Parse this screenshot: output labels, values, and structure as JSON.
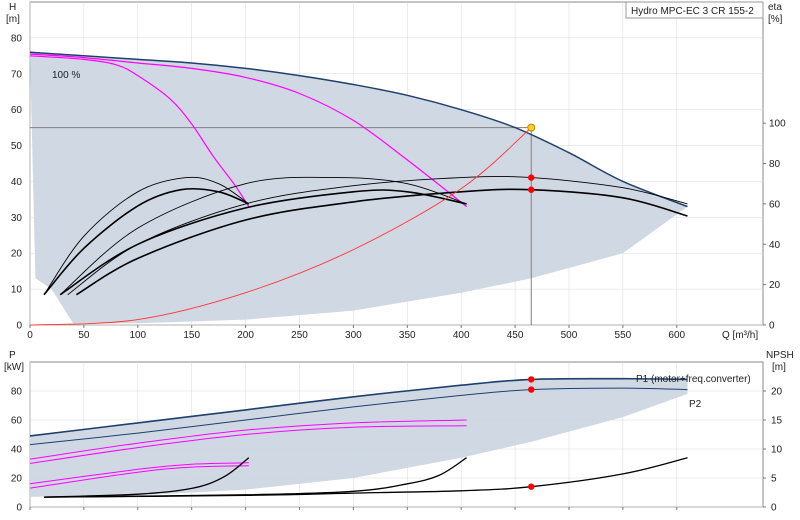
{
  "title": "Hydro MPC-EC 3 CR 155-2",
  "colors": {
    "region": "#ccd6e2",
    "envelope": "#1f3f6e",
    "partial": "#ff00ff",
    "efficiency": "#000000",
    "system": "#ff3333",
    "duty_point": "#ffd21f",
    "marker": "#ff0000",
    "guide": "#808080"
  },
  "chart_data": [
    {
      "type": "line",
      "x_label": "Q [m³/h]",
      "y_left_label": [
        "H",
        "[m]"
      ],
      "y_right_label": [
        "eta",
        "[%]"
      ],
      "x_ticks": [
        0,
        50,
        100,
        150,
        200,
        250,
        300,
        350,
        400,
        450,
        500,
        550,
        600
      ],
      "y_left_ticks": [
        0,
        10,
        20,
        30,
        40,
        50,
        60,
        70,
        80
      ],
      "y_right_ticks": [
        0,
        20,
        40,
        60,
        80,
        100
      ],
      "xlim": [
        0,
        680
      ],
      "ylim_left": [
        0,
        90
      ],
      "ylim_right": [
        0,
        160
      ],
      "annotation": "100 %",
      "duty_point": {
        "q": 465,
        "h": 55
      },
      "series": [
        {
          "role": "max_curve",
          "axis": "left",
          "x": [
            0,
            50,
            100,
            150,
            200,
            250,
            300,
            350,
            400,
            450,
            500,
            550,
            610
          ],
          "y": [
            76,
            75,
            74,
            73,
            71.5,
            69.5,
            67,
            64,
            60,
            55,
            48,
            40,
            33
          ]
        },
        {
          "role": "partial",
          "axis": "left",
          "x": [
            0,
            50,
            100,
            150,
            200,
            250,
            300,
            350,
            405
          ],
          "y": [
            75.5,
            74.5,
            73,
            71.5,
            69,
            64.5,
            57,
            46,
            33
          ]
        },
        {
          "role": "partial",
          "axis": "left",
          "x": [
            0,
            50,
            80,
            100,
            130,
            150,
            170,
            190,
            203
          ],
          "y": [
            75,
            74,
            72.5,
            69.5,
            63,
            56,
            47,
            39,
            33
          ]
        },
        {
          "role": "eta",
          "axis": "right",
          "x": [
            13,
            50,
            100,
            145,
            175,
            203
          ],
          "y": [
            15,
            44,
            66,
            73,
            70,
            60
          ]
        },
        {
          "role": "eta",
          "axis": "right",
          "x": [
            28,
            100,
            200,
            285,
            350,
            405
          ],
          "y": [
            15,
            48,
            70,
            73,
            70,
            60
          ]
        },
        {
          "role": "eta",
          "axis": "right",
          "x": [
            35,
            100,
            200,
            300,
            400,
            465,
            550,
            610
          ],
          "y": [
            15,
            40,
            60,
            69,
            73,
            73,
            68,
            60
          ]
        },
        {
          "role": "eta",
          "axis": "right",
          "x": [
            13,
            50,
            100,
            140,
            175,
            203
          ],
          "y": [
            15,
            38,
            59,
            67,
            66,
            60
          ]
        },
        {
          "role": "eta",
          "axis": "right",
          "x": [
            28,
            100,
            200,
            300,
            350,
            405
          ],
          "y": [
            15,
            40,
            58,
            66,
            66,
            60
          ]
        },
        {
          "role": "eta",
          "axis": "right",
          "x": [
            43,
            100,
            200,
            300,
            400,
            465,
            550,
            610
          ],
          "y": [
            15,
            33,
            52,
            61,
            66,
            67,
            63,
            54
          ]
        },
        {
          "role": "system",
          "axis": "left",
          "x": [
            0,
            100,
            200,
            300,
            400,
            465
          ],
          "y": [
            0,
            1.5,
            9,
            21,
            38,
            55
          ]
        }
      ],
      "markers": [
        {
          "q": 465,
          "eta": 73
        },
        {
          "q": 465,
          "eta": 67
        }
      ]
    },
    {
      "type": "line",
      "x_label": "",
      "y_left_label": [
        "P",
        "[kW]"
      ],
      "y_right_label": [
        "NPSH",
        "[m]"
      ],
      "y_left_ticks": [
        0,
        20,
        40,
        60,
        80
      ],
      "y_right_ticks": [
        0,
        5,
        10,
        15,
        20
      ],
      "xlim": [
        0,
        680
      ],
      "ylim_left": [
        0,
        100
      ],
      "ylim_right": [
        0,
        25
      ],
      "curve_labels": [
        "P1 (motor+freq.converter)",
        "P2"
      ],
      "series": [
        {
          "role": "p1",
          "axis": "left",
          "x": [
            0,
            100,
            200,
            300,
            400,
            465,
            550,
            610
          ],
          "y": [
            49,
            58,
            67,
            76,
            84,
            88,
            88.5,
            88
          ]
        },
        {
          "role": "p2",
          "axis": "left",
          "x": [
            0,
            100,
            200,
            300,
            400,
            465,
            550,
            610
          ],
          "y": [
            43,
            51,
            60,
            69,
            77,
            81,
            82,
            81
          ]
        },
        {
          "role": "partial",
          "axis": "left",
          "x": [
            0,
            100,
            200,
            300,
            405
          ],
          "y": [
            33,
            44,
            53,
            58,
            60
          ]
        },
        {
          "role": "partial",
          "axis": "left",
          "x": [
            0,
            100,
            200,
            300,
            405
          ],
          "y": [
            30,
            41,
            50,
            55,
            56
          ]
        },
        {
          "role": "partial",
          "axis": "left",
          "x": [
            0,
            100,
            150,
            203
          ],
          "y": [
            16,
            26,
            29.5,
            30.5
          ]
        },
        {
          "role": "partial",
          "axis": "left",
          "x": [
            0,
            100,
            150,
            203
          ],
          "y": [
            13,
            24,
            27.5,
            28.5
          ]
        },
        {
          "role": "npsh",
          "axis": "right",
          "x": [
            13,
            100,
            150,
            180,
            203
          ],
          "y": [
            1.7,
            2.2,
            3.2,
            5.2,
            8.5
          ]
        },
        {
          "role": "npsh",
          "axis": "right",
          "x": [
            13,
            200,
            300,
            350,
            380,
            405
          ],
          "y": [
            1.7,
            2.1,
            2.7,
            4,
            5.5,
            8.5
          ]
        },
        {
          "role": "npsh",
          "axis": "right",
          "x": [
            13,
            200,
            300,
            400,
            465,
            550,
            610
          ],
          "y": [
            1.7,
            2,
            2.4,
            2.8,
            3.5,
            5.7,
            8.5
          ]
        }
      ],
      "markers": [
        {
          "q": 465,
          "p": 88
        },
        {
          "q": 465,
          "p": 81
        },
        {
          "q": 465,
          "npsh": 3.5
        }
      ]
    }
  ]
}
